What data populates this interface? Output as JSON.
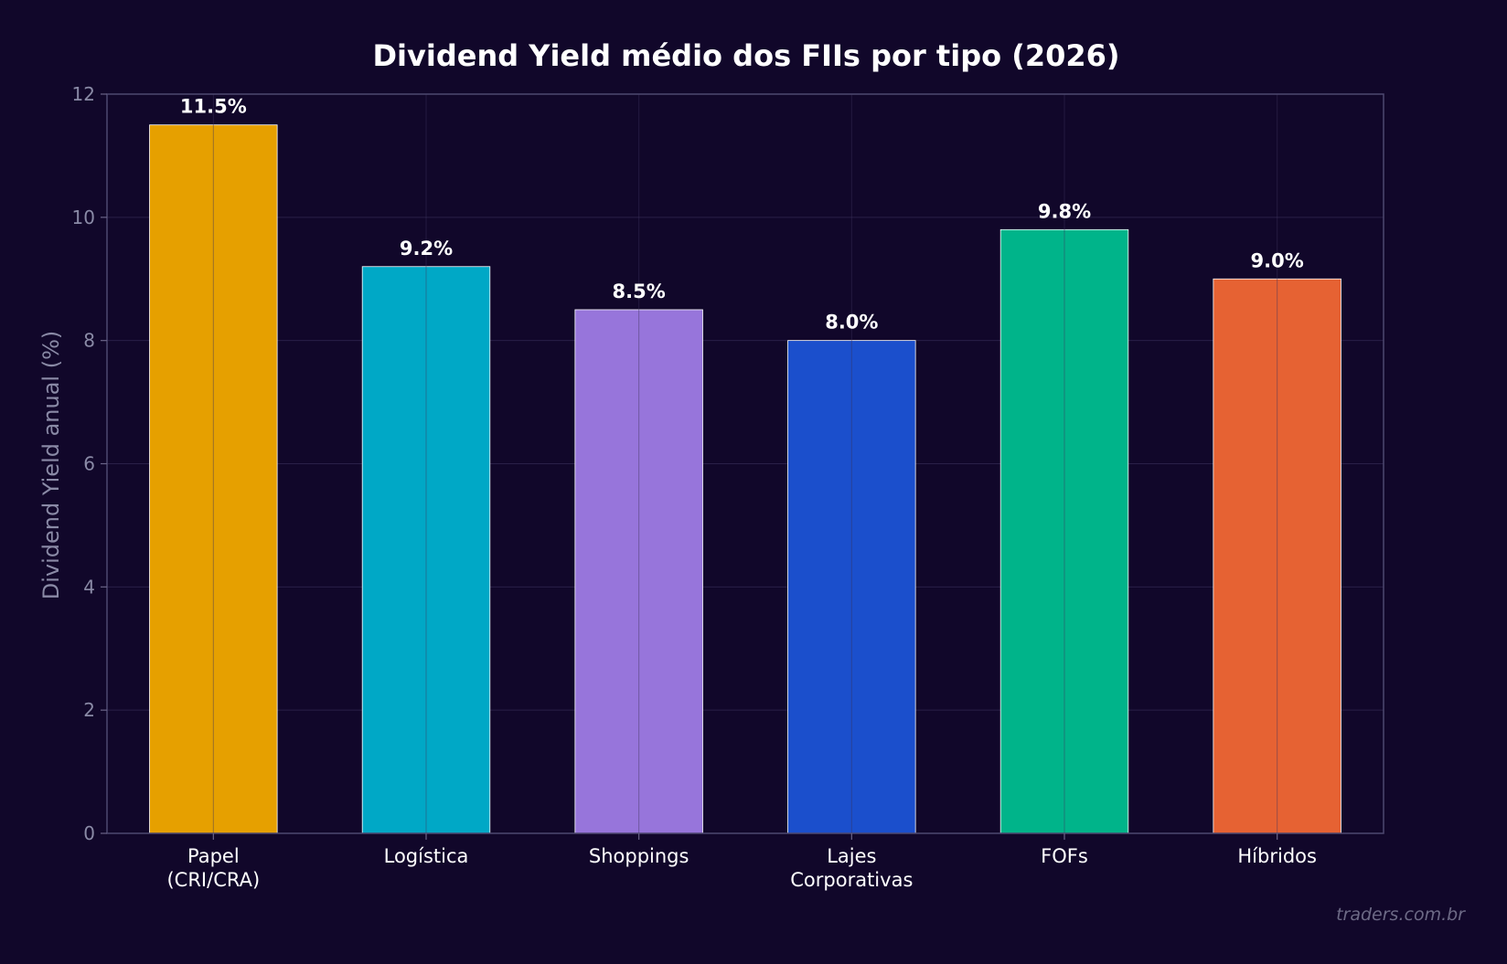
{
  "chart_data": {
    "type": "bar",
    "title": "Dividend Yield médio dos FIIs por tipo (2026)",
    "xlabel": "",
    "ylabel": "Dividend Yield anual (%)",
    "ylim": [
      0,
      12
    ],
    "yticks": [
      0,
      2,
      4,
      6,
      8,
      10,
      12
    ],
    "categories": [
      [
        "Papel",
        "(CRI/CRA)"
      ],
      [
        "Logística"
      ],
      [
        "Shoppings"
      ],
      [
        "Lajes",
        "Corporativas"
      ],
      [
        "FOFs"
      ],
      [
        "Híbridos"
      ]
    ],
    "values": [
      11.5,
      9.2,
      8.5,
      8.0,
      9.8,
      9.0
    ],
    "data_labels": [
      "11.5%",
      "9.2%",
      "8.5%",
      "8.0%",
      "9.8%",
      "9.0%"
    ],
    "colors": [
      "#e6a000",
      "#00a8c6",
      "#9775db",
      "#1b4fcc",
      "#00b48a",
      "#e66233"
    ],
    "grid": true,
    "legend": "none"
  },
  "watermark": "traders.com.br"
}
